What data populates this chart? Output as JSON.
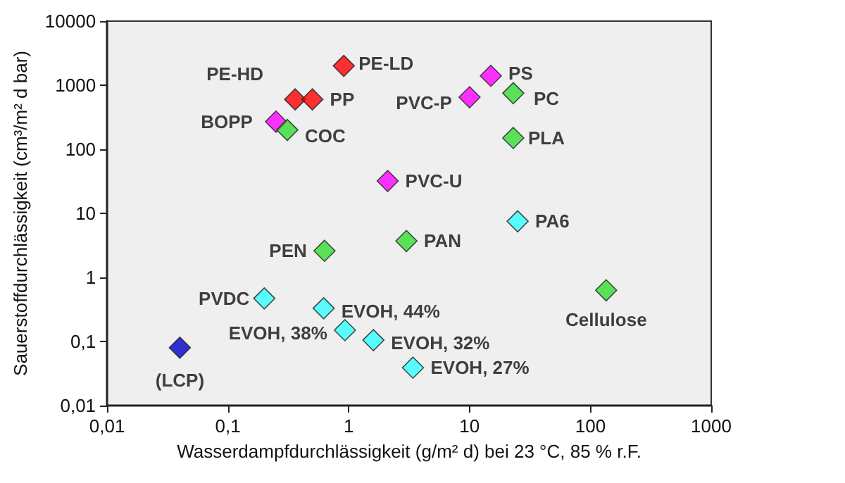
{
  "chart_data": {
    "type": "scatter",
    "xlabel": "Wasserdampfdurchlässigkeit (g/m² d) bei 23 °C, 85 % r.F.",
    "ylabel": "Sauerstoffdurchlässigkeit (cm³/m² d bar)",
    "log": "xy",
    "grid": false,
    "marker": "diamond",
    "xlim": [
      0.01,
      1000
    ],
    "ylim": [
      0.01,
      10000
    ],
    "xticks": [
      {
        "value": 0.01,
        "label": "0,01"
      },
      {
        "value": 0.1,
        "label": "0,1"
      },
      1,
      10,
      100,
      1000
    ],
    "yticks": [
      {
        "value": 0.01,
        "label": "0,01"
      },
      {
        "value": 0.1,
        "label": "0,1"
      },
      1,
      10,
      100,
      1000,
      10000
    ],
    "series": [
      {
        "color": "#ff0000",
        "x": [
          0.91,
          0.36,
          0.5
        ],
        "values": [
          2000,
          600,
          600
        ]
      },
      {
        "color": "#ff00ff",
        "x": [
          0.25,
          10,
          15,
          2.1
        ],
        "values": [
          270,
          650,
          1400,
          32
        ]
      },
      {
        "color": "#33dd33",
        "x": [
          0.31,
          23,
          23,
          3,
          0.63,
          135
        ],
        "values": [
          200,
          750,
          150,
          3.7,
          2.6,
          0.63
        ]
      },
      {
        "color": "#33ffff",
        "x": [
          25,
          0.2,
          0.62,
          0.93,
          1.6,
          3.4
        ],
        "values": [
          7.5,
          0.47,
          0.33,
          0.15,
          0.105,
          0.039
        ]
      },
      {
        "color": "#0000cc",
        "x": [
          0.04
        ],
        "values": [
          0.08
        ]
      }
    ],
    "annotations": [
      {
        "text": "PE-LD",
        "x": 0.91,
        "y": 2000
      },
      {
        "text": "PE-HD",
        "x": 0.36,
        "y": 600
      },
      {
        "text": "PP",
        "x": 0.5,
        "y": 600
      },
      {
        "text": "BOPP",
        "x": 0.25,
        "y": 270
      },
      {
        "text": "COC",
        "x": 0.31,
        "y": 200
      },
      {
        "text": "PVC-P",
        "x": 10,
        "y": 650
      },
      {
        "text": "PS",
        "x": 15,
        "y": 1400
      },
      {
        "text": "PC",
        "x": 23,
        "y": 750
      },
      {
        "text": "PLA",
        "x": 23,
        "y": 150
      },
      {
        "text": "PVC-U",
        "x": 2.1,
        "y": 32
      },
      {
        "text": "PA6",
        "x": 25,
        "y": 7.5
      },
      {
        "text": "PAN",
        "x": 3,
        "y": 3.7
      },
      {
        "text": "PEN",
        "x": 0.63,
        "y": 2.6
      },
      {
        "text": "Cellulose",
        "x": 135,
        "y": 0.63
      },
      {
        "text": "PVDC",
        "x": 0.2,
        "y": 0.47
      },
      {
        "text": "EVOH, 44%",
        "x": 0.62,
        "y": 0.33
      },
      {
        "text": "EVOH, 38%",
        "x": 0.93,
        "y": 0.15
      },
      {
        "text": "EVOH, 32%",
        "x": 1.6,
        "y": 0.105
      },
      {
        "text": "EVOH, 27%",
        "x": 3.4,
        "y": 0.039
      },
      {
        "text": "(LCP)",
        "x": 0.04,
        "y": 0.08
      }
    ]
  }
}
